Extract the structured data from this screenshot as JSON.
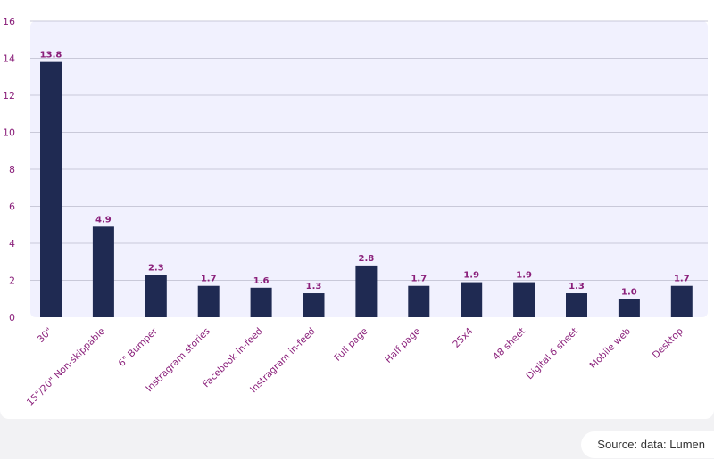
{
  "chart_data": {
    "type": "bar",
    "categories": [
      "30\"",
      "15\"/20\" Non-skippable",
      "6\" Bumper",
      "Instragram stories",
      "Facebook in-feed",
      "Instragram in-feed",
      "Full page",
      "Half page",
      "25x4",
      "48 sheet",
      "Digital 6 sheet",
      "Mobile web",
      "Desktop"
    ],
    "values": [
      13.8,
      4.9,
      2.3,
      1.7,
      1.6,
      1.3,
      2.8,
      1.7,
      1.9,
      1.9,
      1.3,
      1.0,
      1.7
    ],
    "data_labels": [
      "13.8",
      "4.9",
      "2.3",
      "1.7",
      "1.6",
      "1.3",
      "2.8",
      "1.7",
      "1.9",
      "1.9",
      "1.3",
      "1.0",
      "1.7"
    ],
    "y_ticks": [
      "0",
      "2",
      "4",
      "6",
      "8",
      "10",
      "12",
      "14",
      "16"
    ],
    "ylim": [
      0,
      16
    ],
    "title": "",
    "xlabel": "",
    "ylabel": "",
    "grid": true,
    "colors": {
      "bar": "#1f2a52",
      "label": "#8a1f7a",
      "plot_background": "#f1f1fe",
      "grid": "#c9c9d9"
    }
  },
  "source": "Source: data: Lumen"
}
